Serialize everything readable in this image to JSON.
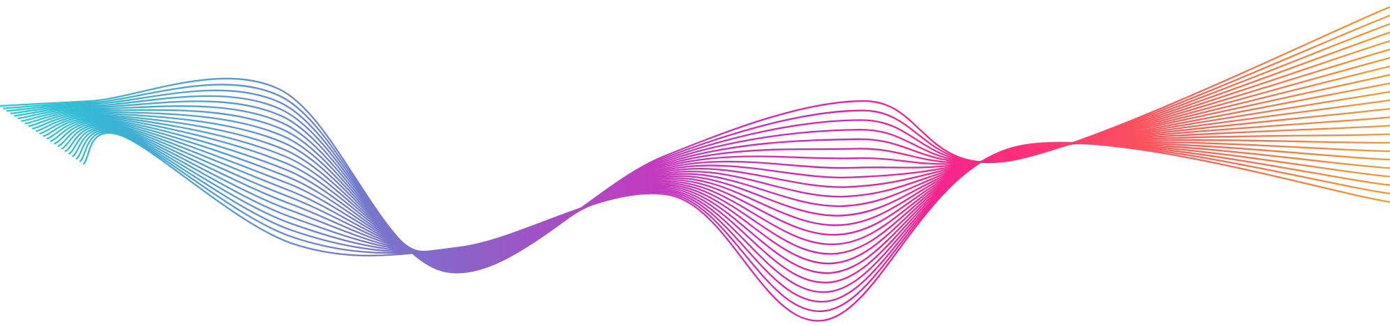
{
  "artwork": {
    "description_type": "abstract-wave-lines",
    "line_count": 24,
    "colors": {
      "cyan": "#22cdd6",
      "violet": "#8a63c9",
      "magenta": "#e21aa6",
      "hot_pink": "#ff2d7a",
      "orange": "#f39a2a"
    }
  }
}
